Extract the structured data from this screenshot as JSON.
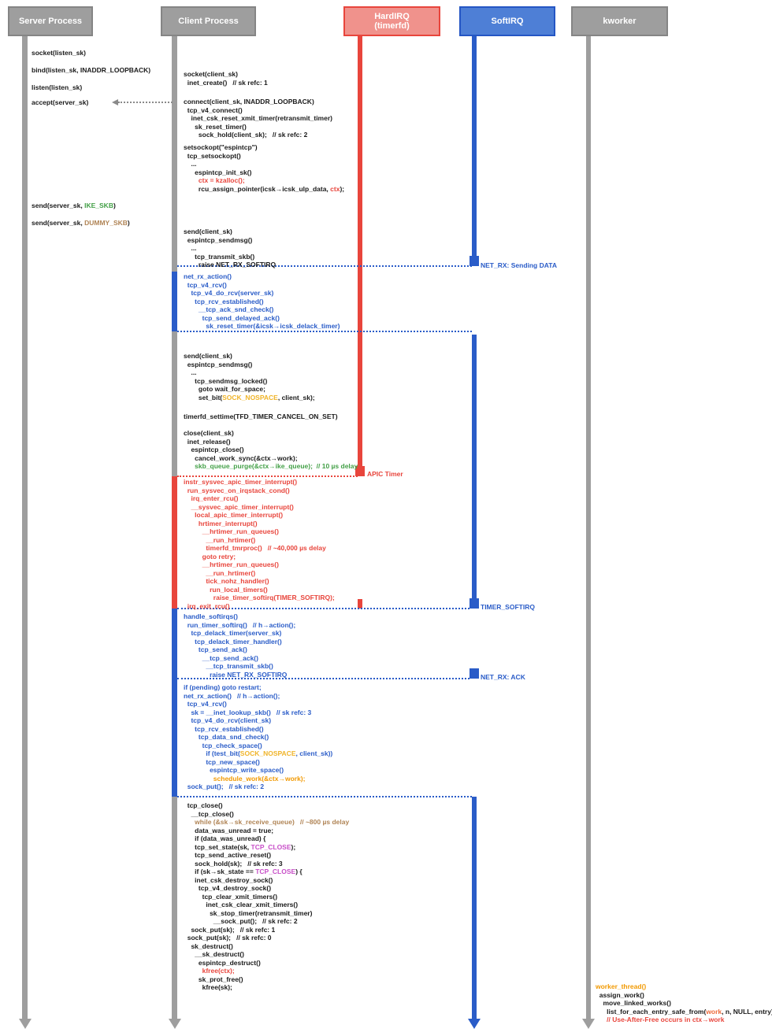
{
  "colors": {
    "lane_gray": "#9e9e9e",
    "lane_blue": "#2a5cc8",
    "lane_red": "#e8453c",
    "text_green": "#43a047",
    "text_yellow": "#f0b429",
    "text_orange": "#f29900",
    "text_tan": "#b08455",
    "text_magenta": "#c84fc8"
  },
  "header": {
    "processes": [
      {
        "label": "Server Process"
      },
      {
        "label": "Client Process"
      },
      {
        "label": "HardIRQ",
        "label2": "(timerfd)"
      },
      {
        "label": "SoftIRQ"
      },
      {
        "label": "kworker"
      }
    ]
  },
  "connector_labels": {
    "netrx_data": "NET_RX: Sending DATA",
    "apic": "APIC Timer",
    "timer_softirq": "TIMER_SOFTIRQ",
    "netrx_ack": "NET_RX: ACK"
  },
  "blocks": {
    "srv_socket": {
      "lines": [
        {
          "ind": 0,
          "seg": [
            [
              "socket(listen_sk)",
              "k"
            ]
          ]
        }
      ]
    },
    "srv_bind": {
      "lines": [
        {
          "ind": 0,
          "seg": [
            [
              "bind(listen_sk, INADDR_LOOPBACK)",
              "k"
            ]
          ]
        }
      ]
    },
    "srv_listen": {
      "lines": [
        {
          "ind": 0,
          "seg": [
            [
              "listen(listen_sk)",
              "k"
            ]
          ]
        }
      ]
    },
    "srv_accept": {
      "lines": [
        {
          "ind": 0,
          "seg": [
            [
              "accept(server_sk)",
              "k"
            ]
          ]
        }
      ]
    },
    "srv_send_ike": {
      "lines": [
        {
          "ind": 0,
          "seg": [
            [
              "send(server_sk, ",
              "k"
            ],
            [
              "IKE_SKB",
              "g"
            ],
            [
              ")",
              "k"
            ]
          ]
        }
      ]
    },
    "srv_send_dummy": {
      "lines": [
        {
          "ind": 0,
          "seg": [
            [
              "send(server_sk, ",
              "k"
            ],
            [
              "DUMMY_SKB",
              "t"
            ],
            [
              ")",
              "k"
            ]
          ]
        }
      ]
    },
    "cl_socket": {
      "lines": [
        {
          "ind": 0,
          "seg": [
            [
              "socket(client_sk)",
              "k"
            ]
          ]
        },
        {
          "ind": 1,
          "seg": [
            [
              "inet_create()   // sk refc: 1",
              "k"
            ]
          ]
        }
      ]
    },
    "cl_connect": {
      "lines": [
        {
          "ind": 0,
          "seg": [
            [
              "connect(client_sk, INADDR_LOOPBACK)",
              "k"
            ]
          ]
        },
        {
          "ind": 1,
          "seg": [
            [
              "tcp_v4_connect()",
              "k"
            ]
          ]
        },
        {
          "ind": 2,
          "seg": [
            [
              "inet_csk_reset_xmit_timer(retransmit_timer)",
              "k"
            ]
          ]
        },
        {
          "ind": 3,
          "seg": [
            [
              "sk_reset_timer()",
              "k"
            ]
          ]
        },
        {
          "ind": 4,
          "seg": [
            [
              "sock_hold(client_sk);   // sk refc: 2",
              "k"
            ]
          ]
        }
      ]
    },
    "cl_setsockopt": {
      "lines": [
        {
          "ind": 0,
          "seg": [
            [
              "setsockopt(\"espintcp\")",
              "k"
            ]
          ]
        },
        {
          "ind": 1,
          "seg": [
            [
              "tcp_setsockopt()",
              "k"
            ]
          ]
        },
        {
          "ind": 2,
          "seg": [
            [
              "...",
              "k"
            ]
          ]
        },
        {
          "ind": 3,
          "seg": [
            [
              "espintcp_init_sk()",
              "k"
            ]
          ]
        },
        {
          "ind": 4,
          "seg": [
            [
              "ctx = kzalloc();",
              "r"
            ]
          ]
        },
        {
          "ind": 4,
          "seg": [
            [
              "rcu_assign_pointer(icsk→icsk_ulp_data, ",
              "k"
            ],
            [
              "ctx",
              "r"
            ],
            [
              ");",
              "k"
            ]
          ]
        }
      ]
    },
    "cl_send1": {
      "lines": [
        {
          "ind": 0,
          "seg": [
            [
              "send(client_sk)",
              "k"
            ]
          ]
        },
        {
          "ind": 1,
          "seg": [
            [
              "espintcp_sendmsg()",
              "k"
            ]
          ]
        },
        {
          "ind": 2,
          "seg": [
            [
              "...",
              "k"
            ]
          ]
        },
        {
          "ind": 3,
          "seg": [
            [
              "tcp_transmit_skb()",
              "k"
            ]
          ]
        },
        {
          "ind": 4,
          "seg": [
            [
              "raise NET_RX_SOFTIRQ",
              "k"
            ]
          ]
        }
      ]
    },
    "sirq_netrx1": {
      "lines": [
        {
          "ind": 0,
          "seg": [
            [
              "net_rx_action()",
              "b"
            ]
          ]
        },
        {
          "ind": 1,
          "seg": [
            [
              "tcp_v4_rcv()",
              "b"
            ]
          ]
        },
        {
          "ind": 2,
          "seg": [
            [
              "tcp_v4_do_rcv(server_sk)",
              "b"
            ]
          ]
        },
        {
          "ind": 3,
          "seg": [
            [
              "tcp_rcv_established()",
              "b"
            ]
          ]
        },
        {
          "ind": 4,
          "seg": [
            [
              "__tcp_ack_snd_check()",
              "b"
            ]
          ]
        },
        {
          "ind": 5,
          "seg": [
            [
              "tcp_send_delayed_ack()",
              "b"
            ]
          ]
        },
        {
          "ind": 6,
          "seg": [
            [
              "sk_reset_timer(&icsk→icsk_delack_timer)",
              "b"
            ]
          ]
        }
      ]
    },
    "cl_send2": {
      "lines": [
        {
          "ind": 0,
          "seg": [
            [
              "send(client_sk)",
              "k"
            ]
          ]
        },
        {
          "ind": 1,
          "seg": [
            [
              "espintcp_sendmsg()",
              "k"
            ]
          ]
        },
        {
          "ind": 2,
          "seg": [
            [
              "...",
              "k"
            ]
          ]
        },
        {
          "ind": 3,
          "seg": [
            [
              "tcp_sendmsg_locked()",
              "k"
            ]
          ]
        },
        {
          "ind": 4,
          "seg": [
            [
              "goto wait_for_space;",
              "k"
            ]
          ]
        },
        {
          "ind": 4,
          "seg": [
            [
              "set_bit(",
              "k"
            ],
            [
              "SOCK_NOSPACE",
              "y"
            ],
            [
              ", client_sk);",
              "k"
            ]
          ]
        }
      ]
    },
    "cl_timerfd": {
      "lines": [
        {
          "ind": 0,
          "seg": [
            [
              "timerfd_settime(TFD_TIMER_CANCEL_ON_SET)",
              "k"
            ]
          ]
        }
      ]
    },
    "cl_close": {
      "lines": [
        {
          "ind": 0,
          "seg": [
            [
              "close(client_sk)",
              "k"
            ]
          ]
        },
        {
          "ind": 1,
          "seg": [
            [
              "inet_release()",
              "k"
            ]
          ]
        },
        {
          "ind": 2,
          "seg": [
            [
              "espintcp_close()",
              "k"
            ]
          ]
        },
        {
          "ind": 3,
          "seg": [
            [
              "cancel_work_sync(&ctx→work);",
              "k"
            ]
          ]
        },
        {
          "ind": 3,
          "seg": [
            [
              "skb_queue_purge(&ctx→ike_queue);  // 10 µs delay",
              "g"
            ]
          ]
        }
      ]
    },
    "hirq_apic": {
      "lines": [
        {
          "ind": 0,
          "seg": [
            [
              "instr_sysvec_apic_timer_interrupt()",
              "r"
            ]
          ]
        },
        {
          "ind": 1,
          "seg": [
            [
              "run_sysvec_on_irqstack_cond()",
              "r"
            ]
          ]
        },
        {
          "ind": 2,
          "seg": [
            [
              "irq_enter_rcu()",
              "r"
            ]
          ]
        },
        {
          "ind": 2,
          "seg": [
            [
              "__sysvec_apic_timer_interrupt()",
              "r"
            ]
          ]
        },
        {
          "ind": 3,
          "seg": [
            [
              "local_apic_timer_interrupt()",
              "r"
            ]
          ]
        },
        {
          "ind": 4,
          "seg": [
            [
              "hrtimer_interrupt()",
              "r"
            ]
          ]
        },
        {
          "ind": 5,
          "seg": [
            [
              "__hrtimer_run_queues()",
              "r"
            ]
          ]
        },
        {
          "ind": 6,
          "seg": [
            [
              "__run_hrtimer()",
              "r"
            ]
          ]
        },
        {
          "ind": 6,
          "seg": [
            [
              "timerfd_tmrproc()   // ~40,000 µs delay",
              "r"
            ]
          ]
        },
        {
          "ind": 5,
          "seg": [
            [
              "goto retry;",
              "r"
            ]
          ]
        },
        {
          "ind": 5,
          "seg": [
            [
              "__hrtimer_run_queues()",
              "r"
            ]
          ]
        },
        {
          "ind": 6,
          "seg": [
            [
              "__run_hrtimer()",
              "r"
            ]
          ]
        },
        {
          "ind": 6,
          "seg": [
            [
              "tick_nohz_handler()",
              "r"
            ]
          ]
        },
        {
          "ind": 7,
          "seg": [
            [
              "run_local_timers()",
              "r"
            ]
          ]
        },
        {
          "ind": 8,
          "seg": [
            [
              "raise_timer_softirq(TIMER_SOFTIRQ);",
              "r"
            ]
          ]
        },
        {
          "ind": 1,
          "seg": [
            [
              "irq_exit_rcu()",
              "r"
            ]
          ]
        }
      ]
    },
    "sirq_timer": {
      "lines": [
        {
          "ind": 0,
          "seg": [
            [
              "handle_softirqs()",
              "b"
            ]
          ]
        },
        {
          "ind": 1,
          "seg": [
            [
              "run_timer_softirq()   // h→action();",
              "b"
            ]
          ]
        },
        {
          "ind": 2,
          "seg": [
            [
              "tcp_delack_timer(server_sk)",
              "b"
            ]
          ]
        },
        {
          "ind": 3,
          "seg": [
            [
              "tcp_delack_timer_handler()",
              "b"
            ]
          ]
        },
        {
          "ind": 4,
          "seg": [
            [
              "tcp_send_ack()",
              "b"
            ]
          ]
        },
        {
          "ind": 5,
          "seg": [
            [
              "__tcp_send_ack()",
              "b"
            ]
          ]
        },
        {
          "ind": 6,
          "seg": [
            [
              "__tcp_transmit_skb()",
              "b"
            ]
          ]
        },
        {
          "ind": 7,
          "seg": [
            [
              "raise NET_RX_SOFTIRQ",
              "b"
            ]
          ]
        }
      ]
    },
    "sirq_netrx2": {
      "lines": [
        {
          "ind": 0,
          "seg": [
            [
              "if (pending) goto restart;",
              "b"
            ]
          ]
        },
        {
          "ind": 0,
          "seg": [
            [
              "net_rx_action()   // h→action();",
              "b"
            ]
          ]
        },
        {
          "ind": 1,
          "seg": [
            [
              "tcp_v4_rcv()",
              "b"
            ]
          ]
        },
        {
          "ind": 2,
          "seg": [
            [
              "sk = __inet_lookup_skb()   // sk refc: 3",
              "b"
            ]
          ]
        },
        {
          "ind": 2,
          "seg": [
            [
              "tcp_v4_do_rcv(client_sk)",
              "b"
            ]
          ]
        },
        {
          "ind": 3,
          "seg": [
            [
              "tcp_rcv_established()",
              "b"
            ]
          ]
        },
        {
          "ind": 4,
          "seg": [
            [
              "tcp_data_snd_check()",
              "b"
            ]
          ]
        },
        {
          "ind": 5,
          "seg": [
            [
              "tcp_check_space()",
              "b"
            ]
          ]
        },
        {
          "ind": 6,
          "seg": [
            [
              "if (test_bit(",
              "b"
            ],
            [
              "SOCK_NOSPACE",
              "y"
            ],
            [
              ", client_sk))",
              "b"
            ]
          ]
        },
        {
          "ind": 6,
          "seg": [
            [
              "tcp_new_space()",
              "b"
            ]
          ]
        },
        {
          "ind": 7,
          "seg": [
            [
              "espintcp_write_space()",
              "b"
            ]
          ]
        },
        {
          "ind": 8,
          "seg": [
            [
              "schedule_work(&ctx→work);",
              "o"
            ]
          ]
        },
        {
          "ind": 1,
          "seg": [
            [
              "sock_put();   // sk refc: 2",
              "b"
            ]
          ]
        }
      ]
    },
    "cl_tcp_close": {
      "lines": [
        {
          "ind": 1,
          "seg": [
            [
              "tcp_close()",
              "k"
            ]
          ]
        },
        {
          "ind": 2,
          "seg": [
            [
              "__tcp_close()",
              "k"
            ]
          ]
        },
        {
          "ind": 3,
          "seg": [
            [
              "while (&sk→sk_receive_queue)   // ~800 µs delay",
              "t"
            ]
          ]
        },
        {
          "ind": 3,
          "seg": [
            [
              "data_was_unread = true;",
              "k"
            ]
          ]
        },
        {
          "ind": 3,
          "seg": [
            [
              "if (data_was_unread) {",
              "k"
            ]
          ]
        },
        {
          "ind": 3,
          "seg": [
            [
              "tcp_set_state(sk, ",
              "k"
            ],
            [
              "TCP_CLOSE",
              "m"
            ],
            [
              ");",
              "k"
            ]
          ]
        },
        {
          "ind": 3,
          "seg": [
            [
              "tcp_send_active_reset()",
              "k"
            ]
          ]
        },
        {
          "ind": 3,
          "seg": [
            [
              "sock_hold(sk);   // sk refc: 3",
              "k"
            ]
          ]
        },
        {
          "ind": 3,
          "seg": [
            [
              "if (sk→sk_state == ",
              "k"
            ],
            [
              "TCP_CLOSE",
              "m"
            ],
            [
              ") {",
              "k"
            ]
          ]
        },
        {
          "ind": 3,
          "seg": [
            [
              "inet_csk_destroy_sock()",
              "k"
            ]
          ]
        },
        {
          "ind": 4,
          "seg": [
            [
              "tcp_v4_destroy_sock()",
              "k"
            ]
          ]
        },
        {
          "ind": 5,
          "seg": [
            [
              "tcp_clear_xmit_timers()",
              "k"
            ]
          ]
        },
        {
          "ind": 6,
          "seg": [
            [
              "inet_csk_clear_xmit_timers()",
              "k"
            ]
          ]
        },
        {
          "ind": 7,
          "seg": [
            [
              "sk_stop_timer(retransmit_timer)",
              "k"
            ]
          ]
        },
        {
          "ind": 8,
          "seg": [
            [
              "__sock_put();   // sk refc: 2",
              "k"
            ]
          ]
        },
        {
          "ind": 2,
          "seg": [
            [
              "sock_put(sk);   // sk refc: 1",
              "k"
            ]
          ]
        },
        {
          "ind": 1,
          "seg": [
            [
              "sock_put(sk);   // sk refc: 0",
              "k"
            ]
          ]
        },
        {
          "ind": 2,
          "seg": [
            [
              "sk_destruct()",
              "k"
            ]
          ]
        },
        {
          "ind": 3,
          "seg": [
            [
              "__sk_destruct()",
              "k"
            ]
          ]
        },
        {
          "ind": 4,
          "seg": [
            [
              "espintcp_destruct()",
              "k"
            ]
          ]
        },
        {
          "ind": 5,
          "seg": [
            [
              "kfree(ctx);",
              "r"
            ]
          ]
        },
        {
          "ind": 4,
          "seg": [
            [
              "sk_prot_free()",
              "k"
            ]
          ]
        },
        {
          "ind": 5,
          "seg": [
            [
              "kfree(sk);",
              "k"
            ]
          ]
        }
      ]
    },
    "kw_worker": {
      "lines": [
        {
          "ind": 0,
          "seg": [
            [
              "worker_thread()",
              "o"
            ]
          ]
        },
        {
          "ind": 1,
          "seg": [
            [
              "assign_work()",
              "k"
            ]
          ]
        },
        {
          "ind": 2,
          "seg": [
            [
              "move_linked_works()",
              "k"
            ]
          ]
        },
        {
          "ind": 3,
          "seg": [
            [
              "list_for_each_entry_safe_from(",
              "k"
            ],
            [
              "work",
              "o2"
            ],
            [
              ", n, NULL, entry)",
              "k"
            ]
          ]
        },
        {
          "ind": 3,
          "seg": [
            [
              "// Use-After-Free occurs in ctx→work",
              "r"
            ]
          ]
        }
      ]
    }
  }
}
